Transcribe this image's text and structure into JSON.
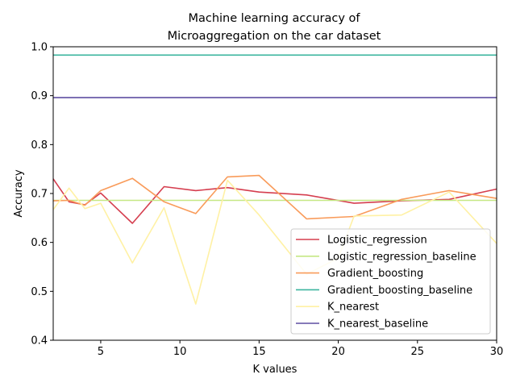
{
  "chart_data": {
    "type": "line",
    "title_line1": "Machine learning accuracy of",
    "title_line2": "Microaggregation on the car dataset",
    "xlabel": "K values",
    "ylabel": "Accuracy",
    "xlim": [
      2,
      30
    ],
    "ylim": [
      0.4,
      1.0
    ],
    "xticks": [
      5,
      10,
      15,
      20,
      25,
      30
    ],
    "yticks": [
      0.4,
      0.5,
      0.6,
      0.7,
      0.8,
      0.9,
      1.0
    ],
    "grid": false,
    "legend_position": "lower-right",
    "series": [
      {
        "name": "Logistic_regression",
        "color": "#d53e4f",
        "x": [
          2,
          3,
          4,
          5,
          7,
          9,
          11,
          13,
          15,
          18,
          21,
          24,
          27,
          30
        ],
        "y": [
          0.73,
          0.683,
          0.677,
          0.701,
          0.639,
          0.714,
          0.706,
          0.712,
          0.703,
          0.697,
          0.68,
          0.685,
          0.688,
          0.709
        ]
      },
      {
        "name": "Logistic_regression_baseline",
        "color": "#c5e884",
        "x": [
          2,
          30
        ],
        "y": [
          0.686,
          0.686
        ]
      },
      {
        "name": "Gradient_boosting",
        "color": "#f99b5a",
        "x": [
          2,
          3,
          4,
          5,
          7,
          9,
          11,
          13,
          15,
          18,
          21,
          24,
          27,
          30
        ],
        "y": [
          0.685,
          0.686,
          0.676,
          0.706,
          0.731,
          0.683,
          0.659,
          0.734,
          0.737,
          0.648,
          0.653,
          0.688,
          0.706,
          0.69
        ]
      },
      {
        "name": "Gradient_boosting_baseline",
        "color": "#3cb59f",
        "x": [
          2,
          30
        ],
        "y": [
          0.983,
          0.983
        ]
      },
      {
        "name": "K_nearest",
        "color": "#fff1a4",
        "x": [
          2,
          3,
          4,
          5,
          7,
          9,
          11,
          13,
          15,
          18,
          20,
          21,
          24,
          27,
          30
        ],
        "y": [
          0.667,
          0.711,
          0.669,
          0.68,
          0.558,
          0.671,
          0.474,
          0.727,
          0.656,
          0.535,
          0.568,
          0.654,
          0.656,
          0.703,
          0.598
        ]
      },
      {
        "name": "K_nearest_baseline",
        "color": "#5e4fa2",
        "x": [
          2,
          30
        ],
        "y": [
          0.896,
          0.896
        ]
      }
    ]
  }
}
